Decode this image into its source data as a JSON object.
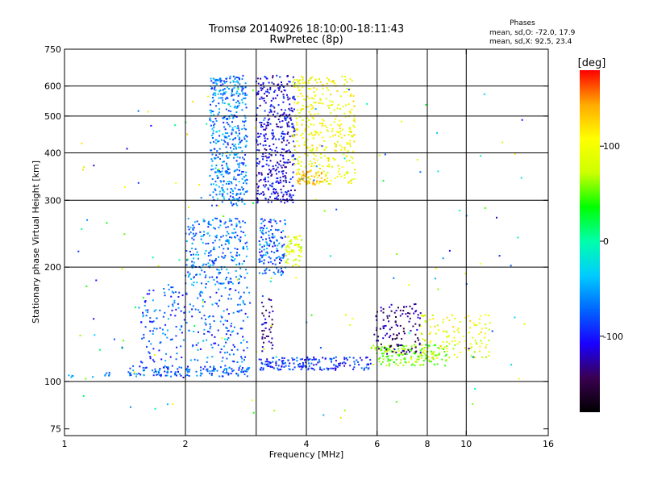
{
  "chart_data": {
    "type": "scatter",
    "title": "Tromsø 20140926 18:10:00-18:11:43",
    "subtitle": "RwPretec (8p)",
    "xlabel": "Frequency [MHz]",
    "ylabel": "Stationary phase Virtual Height [km]",
    "x_scale": "log",
    "y_scale": "log",
    "xlim": [
      1,
      16
    ],
    "ylim": [
      72,
      750
    ],
    "x_ticks": [
      1,
      2,
      4,
      6,
      8,
      10,
      16
    ],
    "x_tick_labels": [
      "1",
      "2",
      "4",
      "6",
      "8",
      "10",
      "16"
    ],
    "y_ticks": [
      75,
      100,
      200,
      300,
      400,
      500,
      600,
      750
    ],
    "y_tick_labels": [
      "75",
      "100",
      "200",
      "300",
      "400",
      "500",
      "600",
      "750"
    ],
    "x_grid": [
      2,
      3,
      4,
      6,
      8,
      10
    ],
    "y_grid": [
      100,
      200,
      300,
      400,
      500,
      600
    ],
    "grid": true,
    "annotation": {
      "title": "Phases",
      "lines": [
        "mean, sd,O: -72.0, 17.9",
        "mean, sd,X: 92.5, 23.4"
      ]
    },
    "colorbar": {
      "label": "[deg]",
      "range": [
        -180,
        180
      ],
      "ticks": [
        100,
        0,
        -100
      ],
      "tick_labels": [
        "100",
        "0",
        "-100"
      ],
      "colors": [
        "#000000",
        "#3a0050",
        "#1a00ff",
        "#0066ff",
        "#00ccff",
        "#00ffaa",
        "#00ff00",
        "#ccff00",
        "#ffff00",
        "#ffaa00",
        "#ff0000"
      ]
    },
    "series": [
      {
        "x_range": [
          1.02,
          1.05
        ],
        "y_range": [
          102,
          104
        ],
        "phase_range": [
          -60,
          -40
        ],
        "count": 4
      },
      {
        "x_range": [
          1.25,
          1.3
        ],
        "y_range": [
          103,
          106
        ],
        "phase_range": [
          -80,
          -50
        ],
        "count": 6
      },
      {
        "x_range": [
          1.45,
          2.9
        ],
        "y_range": [
          103,
          110
        ],
        "phase_range": [
          -110,
          -40
        ],
        "count": 150
      },
      {
        "x_range": [
          1.55,
          2.9
        ],
        "y_range": [
          112,
          180
        ],
        "phase_range": [
          -110,
          -40
        ],
        "count": 260
      },
      {
        "x_range": [
          2.0,
          2.85
        ],
        "y_range": [
          180,
          270
        ],
        "phase_range": [
          -100,
          -30
        ],
        "count": 260
      },
      {
        "x_range": [
          2.3,
          2.85
        ],
        "y_range": [
          290,
          640
        ],
        "phase_range": [
          -100,
          -30
        ],
        "count": 460
      },
      {
        "x_range": [
          3.0,
          3.75
        ],
        "y_range": [
          295,
          640
        ],
        "phase_range": [
          -140,
          -80
        ],
        "count": 420
      },
      {
        "x_range": [
          3.05,
          3.55
        ],
        "y_range": [
          190,
          270
        ],
        "phase_range": [
          -120,
          -40
        ],
        "count": 140
      },
      {
        "x_range": [
          3.55,
          3.9
        ],
        "y_range": [
          200,
          245
        ],
        "phase_range": [
          60,
          110
        ],
        "count": 60
      },
      {
        "x_range": [
          3.1,
          3.3
        ],
        "y_range": [
          120,
          165
        ],
        "phase_range": [
          -150,
          -110
        ],
        "count": 40
      },
      {
        "x_range": [
          3.7,
          5.3
        ],
        "y_range": [
          330,
          640
        ],
        "phase_range": [
          70,
          130
        ],
        "count": 380
      },
      {
        "x_range": [
          3.8,
          4.4
        ],
        "y_range": [
          330,
          360
        ],
        "phase_range": [
          130,
          150
        ],
        "count": 45
      },
      {
        "x_range": [
          3.05,
          5.8
        ],
        "y_range": [
          107,
          116
        ],
        "phase_range": [
          -120,
          -60
        ],
        "count": 170
      },
      {
        "x_range": [
          5.8,
          9.0
        ],
        "y_range": [
          110,
          125
        ],
        "phase_range": [
          30,
          80
        ],
        "count": 170
      },
      {
        "x_range": [
          5.9,
          7.7
        ],
        "y_range": [
          118,
          160
        ],
        "phase_range": [
          -160,
          -110
        ],
        "count": 120
      },
      {
        "x_range": [
          7.7,
          11.5
        ],
        "y_range": [
          115,
          150
        ],
        "phase_range": [
          60,
          130
        ],
        "count": 120
      },
      {
        "x_range": [
          1.05,
          14.0
        ],
        "y_range": [
          80,
          600
        ],
        "phase_range": [
          -120,
          130
        ],
        "count": 160
      }
    ]
  }
}
